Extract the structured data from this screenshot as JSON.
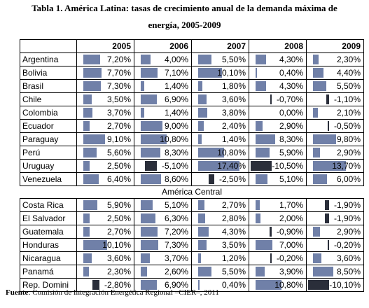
{
  "title": {
    "line1": "Tabla 1. América Latina: tasas de crecimiento anual de la demanda máxima de",
    "line2": "energía, 2005-2009"
  },
  "years": [
    "2005",
    "2006",
    "2007",
    "2008",
    "2009"
  ],
  "rows_a": [
    {
      "country": "Argentina",
      "values": [
        "7,20%",
        "4,00%",
        "5,50%",
        "4,30%",
        "2,30%"
      ],
      "nums": [
        7.2,
        4.0,
        5.5,
        4.3,
        2.3
      ]
    },
    {
      "country": "Bolivia",
      "values": [
        "7,70%",
        "7,10%",
        "10,10%",
        "0,40%",
        "4,40%"
      ],
      "nums": [
        7.7,
        7.1,
        10.1,
        0.4,
        4.4
      ]
    },
    {
      "country": "Brasil",
      "values": [
        "7,30%",
        "1,40%",
        "1,80%",
        "4,30%",
        "5,50%"
      ],
      "nums": [
        7.3,
        1.4,
        1.8,
        4.3,
        5.5
      ]
    },
    {
      "country": "Chile",
      "values": [
        "3,50%",
        "6,90%",
        "3,60%",
        "-0,70%",
        "-1,10%"
      ],
      "nums": [
        3.5,
        6.9,
        3.6,
        -0.7,
        -1.1
      ]
    },
    {
      "country": "Colombia",
      "values": [
        "3,70%",
        "1,40%",
        "3,80%",
        "0,00%",
        "2,10%"
      ],
      "nums": [
        3.7,
        1.4,
        3.8,
        0.0,
        2.1
      ]
    },
    {
      "country": "Ecuador",
      "values": [
        "2,70%",
        "9,00%",
        "2,40%",
        "2,90%",
        "-0,50%"
      ],
      "nums": [
        2.7,
        9.0,
        2.4,
        2.9,
        -0.5
      ]
    },
    {
      "country": "Paraguay",
      "values": [
        "9,10%",
        "10,80%",
        "1,40%",
        "8,30%",
        "9,80%"
      ],
      "nums": [
        9.1,
        10.8,
        1.4,
        8.3,
        9.8
      ]
    },
    {
      "country": "Perú",
      "values": [
        "5,60%",
        "8,30%",
        "10,80%",
        "5,90%",
        "2,90%"
      ],
      "nums": [
        5.6,
        8.3,
        10.8,
        5.9,
        2.9
      ]
    },
    {
      "country": "Uruguay",
      "values": [
        "2,50%",
        "-5,10%",
        "17,40%",
        "-10,50%",
        "13,70%"
      ],
      "nums": [
        2.5,
        -5.1,
        17.4,
        -10.5,
        13.7
      ]
    },
    {
      "country": "Venezuela",
      "values": [
        "6,40%",
        "8,60%",
        "-2,50%",
        "5,10%",
        "6,00%"
      ],
      "nums": [
        6.4,
        8.6,
        -2.5,
        5.1,
        6.0
      ]
    }
  ],
  "section_label": "América Central",
  "rows_b": [
    {
      "country": "Costa Rica",
      "values": [
        "5,90%",
        "5,10%",
        "2,70%",
        "1,70%",
        "-1,90%"
      ],
      "nums": [
        5.9,
        5.1,
        2.7,
        1.7,
        -1.9
      ]
    },
    {
      "country": "El Salvador",
      "values": [
        "2,50%",
        "6,30%",
        "2,80%",
        "2,00%",
        "-1,90%"
      ],
      "nums": [
        2.5,
        6.3,
        2.8,
        2.0,
        -1.9
      ]
    },
    {
      "country": "Guatemala",
      "values": [
        "2,70%",
        "7,20%",
        "4,30%",
        "-0,90%",
        "2,90%"
      ],
      "nums": [
        2.7,
        7.2,
        4.3,
        -0.9,
        2.9
      ]
    },
    {
      "country": "Honduras",
      "values": [
        "10,10%",
        "7,30%",
        "3,50%",
        "7,00%",
        "-0,20%"
      ],
      "nums": [
        10.1,
        7.3,
        3.5,
        7.0,
        -0.2
      ]
    },
    {
      "country": "Nicaragua",
      "values": [
        "3,60%",
        "3,70%",
        "1,20%",
        "-0,20%",
        "3,60%"
      ],
      "nums": [
        3.6,
        3.7,
        1.2,
        -0.2,
        3.6
      ]
    },
    {
      "country": "Panamá",
      "values": [
        "2,30%",
        "2,60%",
        "5,50%",
        "3,90%",
        "8,50%"
      ],
      "nums": [
        2.3,
        2.6,
        5.5,
        3.9,
        8.5
      ]
    },
    {
      "country": "Rep. Domini",
      "values": [
        "-2,80%",
        "6,90%",
        "0,40%",
        "10,80%",
        "-10,10%"
      ],
      "nums": [
        -2.8,
        6.9,
        0.4,
        10.8,
        -10.1
      ]
    }
  ],
  "footer": {
    "label": "Fuente",
    "text": ": Comisión de Integración Energética Regional –CIER–, 2011"
  },
  "colors": {
    "positive_bar": "#7080a8",
    "negative_bar": "#2a2e3a"
  }
}
